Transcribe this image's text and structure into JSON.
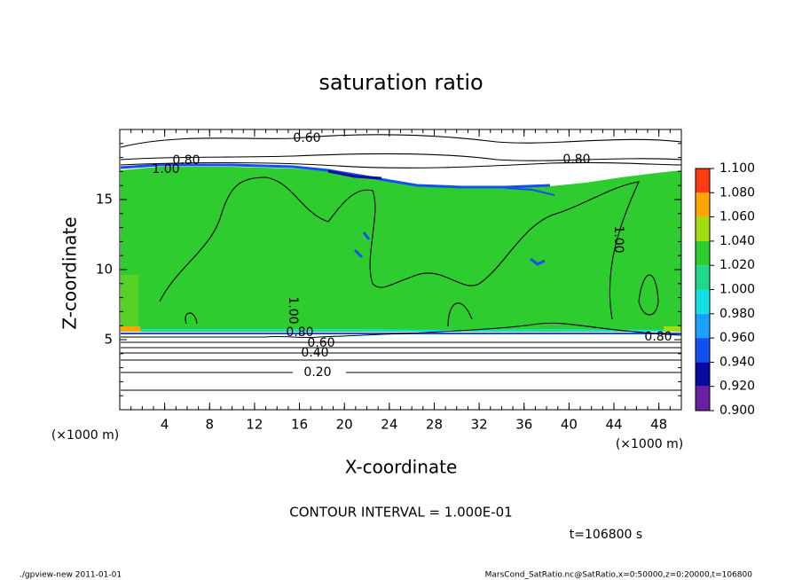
{
  "chart_data": {
    "type": "contour",
    "title": "saturation ratio",
    "x_label": "X-coordinate",
    "y_label": "Z-coordinate",
    "x_unit": "(×1000 m)",
    "y_unit": "(×1000 m)",
    "xlim": [
      0,
      50
    ],
    "xticks": [
      4,
      8,
      12,
      16,
      20,
      24,
      28,
      32,
      36,
      40,
      44,
      48
    ],
    "ylim": [
      0,
      20
    ],
    "yticks": [
      5,
      10,
      15
    ],
    "colorbar_ticks": [
      {
        "value": 0.9,
        "label": "0.900"
      },
      {
        "value": 0.92,
        "label": "0.920"
      },
      {
        "value": 0.94,
        "label": "0.940"
      },
      {
        "value": 0.96,
        "label": "0.960"
      },
      {
        "value": 0.98,
        "label": "0.980"
      },
      {
        "value": 1.0,
        "label": "1.000"
      },
      {
        "value": 1.02,
        "label": "1.020"
      },
      {
        "value": 1.04,
        "label": "1.040"
      },
      {
        "value": 1.06,
        "label": "1.060"
      },
      {
        "value": 1.08,
        "label": "1.080"
      },
      {
        "value": 1.1,
        "label": "1.100"
      }
    ],
    "colors": [
      "#6a1fa0",
      "#0a0aa0",
      "#1450f0",
      "#1aa0ff",
      "#10e0e0",
      "#20d88a",
      "#2ecc2e",
      "#a0dc10",
      "#ffa500",
      "#ff3a10"
    ],
    "contour_labels": [
      "0.60",
      "0.80",
      "1.00",
      "0.80",
      "1.00",
      "1.00",
      "0.80",
      "0.60",
      "0.40",
      "0.20",
      "0.80"
    ],
    "contour_interval": "CONTOUR INTERVAL = 1.000E-01",
    "time_label": "t=106800 s",
    "footer_left": "./gpview-new  2011-01-01",
    "footer_right": "MarsCond_SatRatio.nc@SatRatio,x=0:50000,z=0:20000,t=106800"
  }
}
